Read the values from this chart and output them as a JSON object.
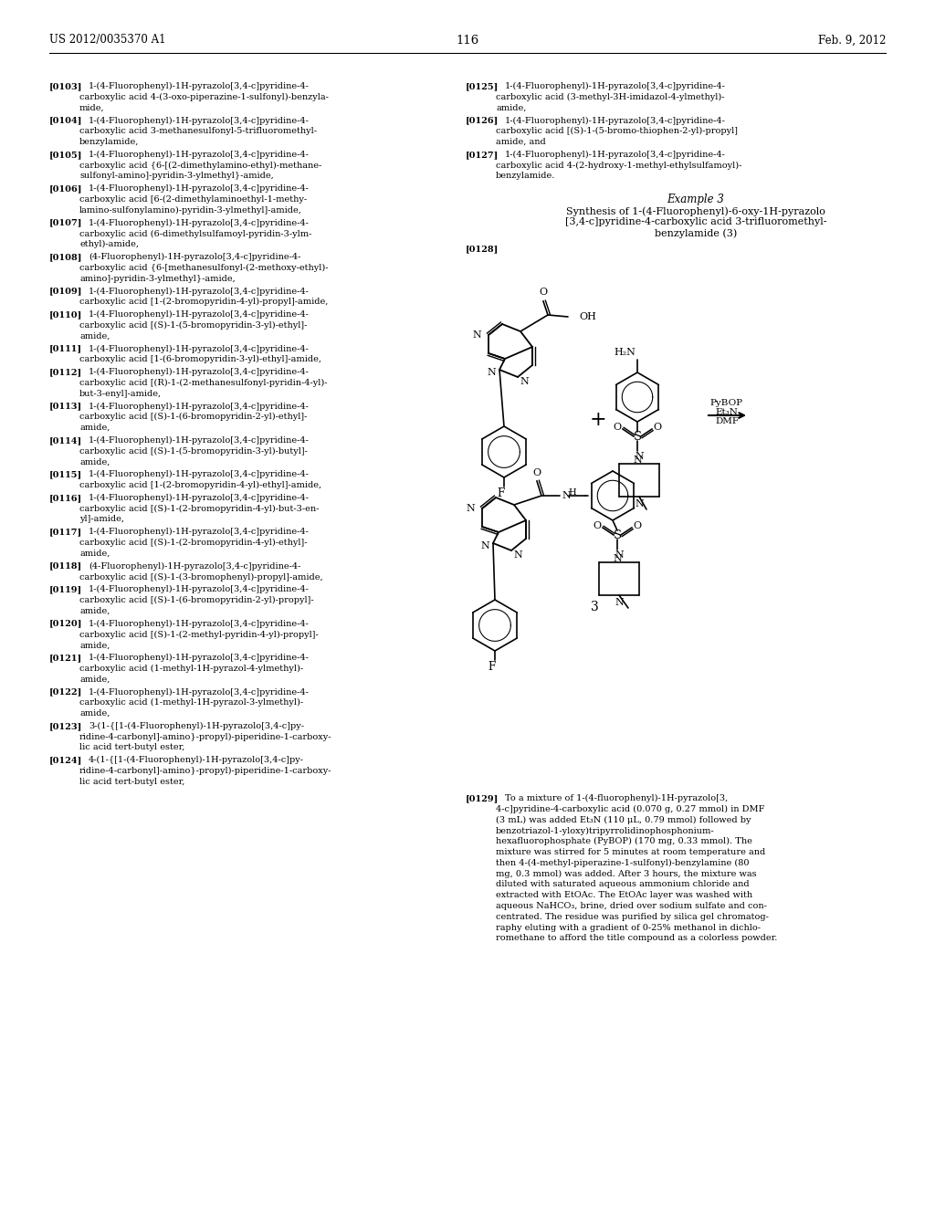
{
  "page_number": "116",
  "header_left": "US 2012/0035370 A1",
  "header_right": "Feb. 9, 2012",
  "background_color": "#ffffff",
  "left_column_paragraphs": [
    {
      "ref": "[0103]",
      "text": "1-(4-Fluorophenyl)-1H-pyrazolo[3,4-c]pyridine-4-\ncarboxylic acid 4-(3-oxo-piperazine-1-sulfonyl)-benzyla-\nmide,"
    },
    {
      "ref": "[0104]",
      "text": "1-(4-Fluorophenyl)-1H-pyrazolo[3,4-c]pyridine-4-\ncarboxylic acid 3-methanesulfonyl-5-trifluoromethyl-\nbenzylamide,"
    },
    {
      "ref": "[0105]",
      "text": "1-(4-Fluorophenyl)-1H-pyrazolo[3,4-c]pyridine-4-\ncarboxylic acid {6-[(2-dimethylamino-ethyl)-methane-\nsulfonyl-amino]-pyridin-3-ylmethyl}-amide,"
    },
    {
      "ref": "[0106]",
      "text": "1-(4-Fluorophenyl)-1H-pyrazolo[3,4-c]pyridine-4-\ncarboxylic acid [6-(2-dimethylaminoethyl-1-methy-\nlamino-sulfonylamino)-pyridin-3-ylmethyl]-amide,"
    },
    {
      "ref": "[0107]",
      "text": "1-(4-Fluorophenyl)-1H-pyrazolo[3,4-c]pyridine-4-\ncarboxylic acid (6-dimethylsulfamoyl-pyridin-3-ylm-\nethyl)-amide,"
    },
    {
      "ref": "[0108]",
      "text": "(4-Fluorophenyl)-1H-pyrazolo[3,4-c]pyridine-4-\ncarboxylic acid {6-[methanesulfonyl-(2-methoxy-ethyl)-\namino]-pyridin-3-ylmethyl}-amide,"
    },
    {
      "ref": "[0109]",
      "text": "1-(4-Fluorophenyl)-1H-pyrazolo[3,4-c]pyridine-4-\ncarboxylic acid [1-(2-bromopyridin-4-yl)-propyl]-amide,"
    },
    {
      "ref": "[0110]",
      "text": "1-(4-Fluorophenyl)-1H-pyrazolo[3,4-c]pyridine-4-\ncarboxylic acid [(S)-1-(5-bromopyridin-3-yl)-ethyl]-\namide,"
    },
    {
      "ref": "[0111]",
      "text": "1-(4-Fluorophenyl)-1H-pyrazolo[3,4-c]pyridine-4-\ncarboxylic acid [1-(6-bromopyridin-3-yl)-ethyl]-amide,"
    },
    {
      "ref": "[0112]",
      "text": "1-(4-Fluorophenyl)-1H-pyrazolo[3,4-c]pyridine-4-\ncarboxylic acid [(R)-1-(2-methanesulfonyl-pyridin-4-yl)-\nbut-3-enyl]-amide,"
    },
    {
      "ref": "[0113]",
      "text": "1-(4-Fluorophenyl)-1H-pyrazolo[3,4-c]pyridine-4-\ncarboxylic acid [(S)-1-(6-bromopyridin-2-yl)-ethyl]-\namide,"
    },
    {
      "ref": "[0114]",
      "text": "1-(4-Fluorophenyl)-1H-pyrazolo[3,4-c]pyridine-4-\ncarboxylic acid [(S)-1-(5-bromopyridin-3-yl)-butyl]-\namide,"
    },
    {
      "ref": "[0115]",
      "text": "1-(4-Fluorophenyl)-1H-pyrazolo[3,4-c]pyridine-4-\ncarboxylic acid [1-(2-bromopyridin-4-yl)-ethyl]-amide,"
    },
    {
      "ref": "[0116]",
      "text": "1-(4-Fluorophenyl)-1H-pyrazolo[3,4-c]pyridine-4-\ncarboxylic acid [(S)-1-(2-bromopyridin-4-yl)-but-3-en-\nyl]-amide,"
    },
    {
      "ref": "[0117]",
      "text": "1-(4-Fluorophenyl)-1H-pyrazolo[3,4-c]pyridine-4-\ncarboxylic acid [(S)-1-(2-bromopyridin-4-yl)-ethyl]-\namide,"
    },
    {
      "ref": "[0118]",
      "text": "(4-Fluorophenyl)-1H-pyrazolo[3,4-c]pyridine-4-\ncarboxylic acid [(S)-1-(3-bromophenyl)-propyl]-amide,"
    },
    {
      "ref": "[0119]",
      "text": "1-(4-Fluorophenyl)-1H-pyrazolo[3,4-c]pyridine-4-\ncarboxylic acid [(S)-1-(6-bromopyridin-2-yl)-propyl]-\namide,"
    },
    {
      "ref": "[0120]",
      "text": "1-(4-Fluorophenyl)-1H-pyrazolo[3,4-c]pyridine-4-\ncarboxylic acid [(S)-1-(2-methyl-pyridin-4-yl)-propyl]-\namide,"
    },
    {
      "ref": "[0121]",
      "text": "1-(4-Fluorophenyl)-1H-pyrazolo[3,4-c]pyridine-4-\ncarboxylic acid (1-methyl-1H-pyrazol-4-ylmethyl)-\namide,"
    },
    {
      "ref": "[0122]",
      "text": "1-(4-Fluorophenyl)-1H-pyrazolo[3,4-c]pyridine-4-\ncarboxylic acid (1-methyl-1H-pyrazol-3-ylmethyl)-\namide,"
    },
    {
      "ref": "[0123]",
      "text": "3-(1-{[1-(4-Fluorophenyl)-1H-pyrazolo[3,4-c]py-\nridine-4-carbonyl]-amino}-propyl)-piperidine-1-carboxy-\nlic acid tert-butyl ester,"
    },
    {
      "ref": "[0124]",
      "text": "4-(1-{[1-(4-Fluorophenyl)-1H-pyrazolo[3,4-c]py-\nridine-4-carbonyl]-amino}-propyl)-piperidine-1-carboxy-\nlic acid tert-butyl ester,"
    }
  ],
  "right_column_paragraphs": [
    {
      "ref": "[0125]",
      "text": "1-(4-Fluorophenyl)-1H-pyrazolo[3,4-c]pyridine-4-\ncarboxylic acid (3-methyl-3H-imidazol-4-ylmethyl)-\namide,"
    },
    {
      "ref": "[0126]",
      "text": "1-(4-Fluorophenyl)-1H-pyrazolo[3,4-c]pyridine-4-\ncarboxylic acid [(S)-1-(5-bromo-thiophen-2-yl)-propyl]\namide, and"
    },
    {
      "ref": "[0127]",
      "text": "1-(4-Fluorophenyl)-1H-pyrazolo[3,4-c]pyridine-4-\ncarboxylic acid 4-(2-hydroxy-1-methyl-ethylsulfamoyl)-\nbenzylamide."
    }
  ],
  "example_title": "Example 3",
  "example_subtitle_lines": [
    "Synthesis of 1-(4-Fluorophenyl)-6-oxy-1H-pyrazolo",
    "[3,4-c]pyridine-4-carboxylic acid 3-trifluoromethyl-",
    "benzylamide (3)"
  ],
  "paragraph_0128": "[0128]",
  "paragraph_0129_ref": "[0129]",
  "paragraph_0129_text": "To a mixture of 1-(4-fluorophenyl)-1H-pyrazolo[3,\n4-c]pyridine-4-carboxylic acid (0.070 g, 0.27 mmol) in DMF\n(3 mL) was added Et₃N (110 μL, 0.79 mmol) followed by\nbenzotriazol-1-yloxy)tripyrrolidinophosphonium-\nhexafluorophosphate (PyBOP) (170 mg, 0.33 mmol). The\nmixture was stirred for 5 minutes at room temperature and\nthen 4-(4-methyl-piperazine-1-sulfonyl)-benzylamine (80\nmg, 0.3 mmol) was added. After 3 hours, the mixture was\ndiluted with saturated aqueous ammonium chloride and\nextracted with EtOAc. The EtOAc layer was washed with\naqueous NaHCO₃, brine, dried over sodium sulfate and con-\ncentrated. The residue was purified by silica gel chromatog-\nraphy eluting with a gradient of 0-25% methanol in dichlo-\nromethane to afford the title compound as a colorless powder."
}
